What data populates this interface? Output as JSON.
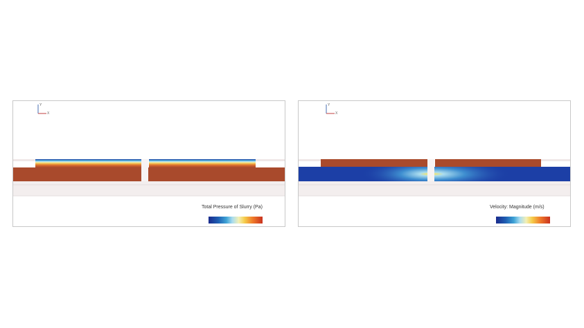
{
  "panels": [
    {
      "legend_label": "Total Pressure of Slurry (Pa)",
      "axes": {
        "up": "Y",
        "right": "X"
      }
    },
    {
      "legend_label": "Velocity: Magnitude (m/s)",
      "axes": {
        "up": "Y",
        "right": "X"
      }
    }
  ],
  "colors": {
    "pressure_high": "#a94a2c",
    "flow_low": "#1c3fa6",
    "background_band": "#f3eeee",
    "panel_border": "#c8c8c8"
  }
}
